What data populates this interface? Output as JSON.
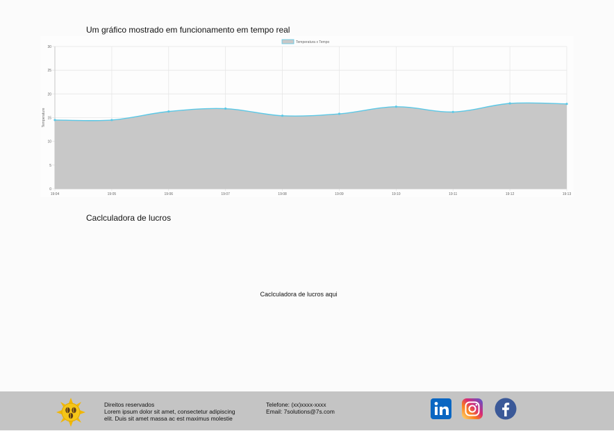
{
  "chart_section": {
    "title": "Um gráfico mostrado em funcionamento em tempo real"
  },
  "chart_data": {
    "type": "area",
    "title": "",
    "xlabel": "",
    "ylabel": "Temperature",
    "x": [
      "19:04",
      "19:05",
      "19:06",
      "19:07",
      "19:08",
      "19:09",
      "19:10",
      "19:11",
      "19:12",
      "19:13"
    ],
    "series": [
      {
        "name": "Temperatura x Tempo",
        "values": [
          14.5,
          14.5,
          16.3,
          16.9,
          15.4,
          15.8,
          17.3,
          16.2,
          18.0,
          17.9
        ]
      }
    ],
    "ylim": [
      0,
      30
    ],
    "yticks": [
      0,
      5,
      10,
      15,
      20,
      25,
      30
    ],
    "grid": true,
    "legend": "top-center",
    "colors": {
      "fill": "#c8c8c8",
      "line": "#5bc8e6",
      "grid": "#e6e6e6"
    }
  },
  "calculator": {
    "title": "Caclculadora de lucros",
    "placeholder": "Caclculadora de lucros aqui"
  },
  "footer": {
    "logo_icon": "sun-coffee-beans-logo",
    "rights_title": "Direitos reservados",
    "rights_line1": "Lorem ipsum dolor sit amet, consectetur adipiscing",
    "rights_line2": "elit. Duis sit amet massa ac est maximus molestie",
    "phone": "Telefone: (xx)xxxx-xxxx",
    "email": "Email: 7solutions@7s.com",
    "social": [
      {
        "icon": "linkedin-icon",
        "color": "#0a66c2"
      },
      {
        "icon": "instagram-icon",
        "color": "#d6249f"
      },
      {
        "icon": "facebook-icon",
        "color": "#3b5998"
      }
    ]
  }
}
